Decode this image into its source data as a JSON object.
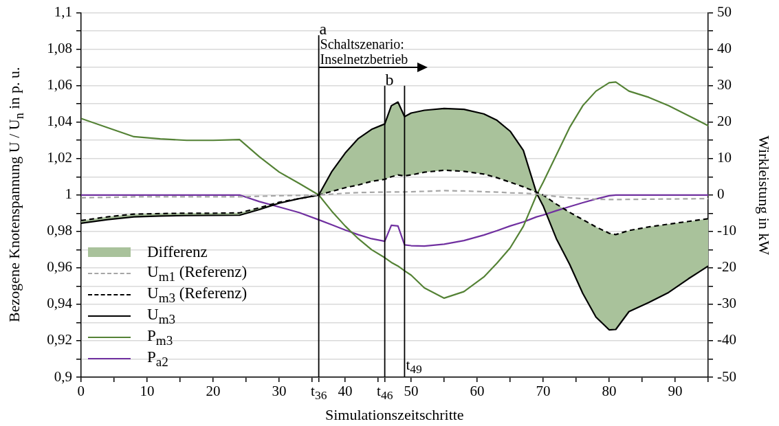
{
  "chart_data": {
    "type": "line",
    "xlabel": "Simulationszeitschritte",
    "ylabel": "Bezogene Knotenspannung U / U$_{n}$ in p. u.",
    "y2label": "Wirkleistung in kW",
    "x": [
      0,
      4,
      8,
      12,
      16,
      20,
      24,
      27,
      30,
      33,
      36,
      38,
      40,
      42,
      44,
      46,
      47,
      48,
      49,
      50,
      52,
      55,
      58,
      61,
      63,
      65,
      67,
      69,
      70,
      72,
      74,
      76,
      78,
      80,
      81,
      83,
      86,
      89,
      92,
      95
    ],
    "xlim": [
      0,
      95
    ],
    "xticks": [
      0,
      {
        "value": 5,
        "label": null
      },
      10,
      {
        "value": 15,
        "label": null
      },
      20,
      {
        "value": 25,
        "label": null
      },
      30,
      {
        "value": 35,
        "label": null
      },
      40,
      {
        "value": 45,
        "label": null
      },
      50,
      {
        "value": 55,
        "label": null
      },
      60,
      {
        "value": 65,
        "label": null
      },
      70,
      {
        "value": 75,
        "label": null
      },
      80,
      {
        "value": 85,
        "label": null
      },
      90,
      {
        "value": 95,
        "label": null
      },
      {
        "value": 36,
        "label": "t$_{36}$"
      },
      {
        "value": 46,
        "label": "t$_{46}$"
      }
    ],
    "ylim": [
      0.9,
      1.1
    ],
    "yticks": [
      {
        "value": 0.9,
        "label": "0,9"
      },
      {
        "value": 0.91,
        "label": null
      },
      {
        "value": 0.92,
        "label": "0,92"
      },
      {
        "value": 0.93,
        "label": null
      },
      {
        "value": 0.94,
        "label": "0,94"
      },
      {
        "value": 0.95,
        "label": null
      },
      {
        "value": 0.96,
        "label": "0,96"
      },
      {
        "value": 0.97,
        "label": null
      },
      {
        "value": 0.98,
        "label": "0,98"
      },
      {
        "value": 0.99,
        "label": null
      },
      1,
      {
        "value": 1.01,
        "label": null
      },
      {
        "value": 1.02,
        "label": "1,02"
      },
      {
        "value": 1.03,
        "label": null
      },
      {
        "value": 1.04,
        "label": "1,04"
      },
      {
        "value": 1.05,
        "label": null
      },
      {
        "value": 1.06,
        "label": "1,06"
      },
      {
        "value": 1.07,
        "label": null
      },
      {
        "value": 1.08,
        "label": "1,08"
      },
      {
        "value": 1.09,
        "label": null
      },
      {
        "value": 1.1,
        "label": "1,1"
      }
    ],
    "y2lim": [
      -50,
      50
    ],
    "y2ticks": [
      -50,
      {
        "value": -45,
        "label": null
      },
      -40,
      {
        "value": -35,
        "label": null
      },
      -30,
      {
        "value": -25,
        "label": null
      },
      -20,
      {
        "value": -15,
        "label": null
      },
      -10,
      {
        "value": -5,
        "label": null
      },
      0,
      {
        "value": 5,
        "label": null
      },
      10,
      {
        "value": 15,
        "label": null
      },
      20,
      {
        "value": 25,
        "label": null
      },
      30,
      {
        "value": 35,
        "label": null
      },
      40,
      {
        "value": 45,
        "label": null
      },
      50
    ],
    "grid": "y",
    "legend": "bottom left",
    "series": [
      {
        "name": "Differenz",
        "type": "area",
        "color": "#a9c29b",
        "lower": [
          0.986,
          0.988,
          0.9895,
          0.9898,
          0.99,
          0.99,
          0.9902,
          0.993,
          0.996,
          0.998,
          1.0,
          1.002,
          1.004,
          1.0055,
          1.0075,
          1.0086,
          1.01,
          1.011,
          1.0105,
          1.011,
          1.0125,
          1.0136,
          1.013,
          1.0115,
          1.0095,
          1.007,
          1.0045,
          1.0015,
          1.0,
          0.995,
          0.9905,
          0.9865,
          0.9825,
          0.979,
          0.9783,
          0.9805,
          0.9825,
          0.984,
          0.9855,
          0.987
        ],
        "values": [
          null,
          null,
          null,
          null,
          null,
          null,
          null,
          null,
          null,
          null,
          null,
          null,
          null,
          null,
          null,
          null,
          null,
          null,
          null,
          null,
          null,
          null,
          null,
          null,
          null,
          null,
          null,
          null,
          null,
          null,
          null,
          null,
          null,
          null,
          null,
          null,
          null,
          null,
          null,
          null
        ],
        "upper": [
          0.9845,
          0.9865,
          0.988,
          0.9885,
          0.9887,
          0.9888,
          0.9889,
          0.992,
          0.9955,
          0.998,
          1.0,
          1.013,
          1.023,
          1.031,
          1.036,
          1.039,
          1.049,
          1.051,
          1.043,
          1.045,
          1.0465,
          1.0475,
          1.047,
          1.0445,
          1.041,
          1.035,
          1.0245,
          1.001,
          0.994,
          0.976,
          0.962,
          0.946,
          0.933,
          0.926,
          0.9262,
          0.936,
          0.941,
          0.9465,
          0.954,
          0.961
        ]
      },
      {
        "name": "U$_{m1}$ (Referenz)",
        "color": "#a6a6a6",
        "line_style": "dashed",
        "values": [
          0.9985,
          0.9987,
          0.999,
          0.999,
          0.999,
          0.999,
          0.999,
          0.9993,
          0.9996,
          0.9998,
          1.0,
          1.0005,
          1.001,
          1.0013,
          1.0015,
          1.0016,
          1.0017,
          1.0017,
          1.0017,
          1.0018,
          1.002,
          1.0024,
          1.0022,
          1.0018,
          1.0016,
          1.0012,
          1.001,
          1.0005,
          1.0,
          0.9992,
          0.9985,
          0.998,
          0.9977,
          0.9975,
          0.9975,
          0.9976,
          0.9977,
          0.9978,
          0.9979,
          0.998
        ]
      },
      {
        "name": "U$_{m3}$ (Referenz)",
        "color": "#000000",
        "line_style": "dashed",
        "values": [
          0.986,
          0.988,
          0.9895,
          0.9898,
          0.99,
          0.99,
          0.9902,
          0.993,
          0.996,
          0.998,
          1.0,
          1.002,
          1.004,
          1.0055,
          1.0075,
          1.0086,
          1.01,
          1.011,
          1.0105,
          1.011,
          1.0125,
          1.0136,
          1.013,
          1.0115,
          1.0095,
          1.007,
          1.0045,
          1.0015,
          1.0,
          0.995,
          0.9905,
          0.9865,
          0.9825,
          0.979,
          0.9783,
          0.9805,
          0.9825,
          0.984,
          0.9855,
          0.987
        ]
      },
      {
        "name": "U$_{m3}$",
        "color": "#000000",
        "line_style": "solid",
        "values": [
          0.9845,
          0.9865,
          0.988,
          0.9885,
          0.9887,
          0.9888,
          0.9889,
          0.992,
          0.9955,
          0.998,
          1.0,
          1.013,
          1.023,
          1.031,
          1.036,
          1.039,
          1.049,
          1.051,
          1.043,
          1.045,
          1.0465,
          1.0475,
          1.047,
          1.0445,
          1.041,
          1.035,
          1.0245,
          1.001,
          0.994,
          0.976,
          0.962,
          0.946,
          0.933,
          0.926,
          0.9262,
          0.936,
          0.941,
          0.9465,
          0.954,
          0.961
        ]
      },
      {
        "name": "P$_{m3}$",
        "color": "#548235",
        "line_style": "solid",
        "axis": "y2",
        "values": [
          21,
          18.5,
          16,
          15.4,
          15,
          15,
          15.2,
          10.5,
          6.3,
          3.2,
          0,
          -4.5,
          -8.5,
          -12,
          -15,
          -17.2,
          -18.5,
          -19.5,
          -20.8,
          -22,
          -25.5,
          -28.3,
          -26.5,
          -22.5,
          -18.7,
          -14.5,
          -8.6,
          0,
          3.5,
          11,
          18.5,
          24.5,
          28.5,
          30.8,
          31,
          28.5,
          26.8,
          24.5,
          21.8,
          19
        ]
      },
      {
        "name": "P$_{a2}$",
        "color": "#7030a0",
        "line_style": "solid",
        "axis": "y2",
        "values": [
          0,
          0,
          0,
          0,
          0,
          0,
          0,
          -1.8,
          -3.3,
          -4.8,
          -6.8,
          -8.2,
          -9.6,
          -10.9,
          -12,
          -12.7,
          -8.3,
          -8.5,
          -13.7,
          -13.9,
          -14,
          -13.5,
          -12.5,
          -11,
          -9.8,
          -8.5,
          -7.4,
          -6,
          -5.5,
          -4.3,
          -3.2,
          -2.1,
          -1.1,
          -0.2,
          0,
          0,
          0,
          0,
          0,
          0
        ]
      }
    ],
    "ref_lines": [
      {
        "axis": "x",
        "value": 36,
        "label": "a",
        "color": "#000000"
      },
      {
        "axis": "x",
        "value": 46,
        "label": "b",
        "color": "#000000"
      },
      {
        "axis": "x",
        "value": 49,
        "label": "t$_{49}$",
        "color": "#000000"
      }
    ],
    "annotations": [
      {
        "text": "Schaltszenario:\nInselnetzbetrieb",
        "x": 36,
        "y": 1.07
      }
    ]
  }
}
